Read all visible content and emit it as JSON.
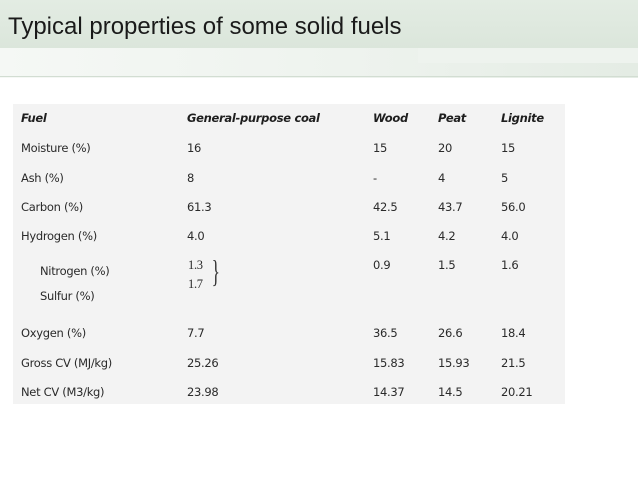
{
  "slide": {
    "title": "Typical properties of some solid fuels"
  },
  "table": {
    "headers": [
      "Fuel",
      "General-purpose coal",
      "Wood",
      "Peat",
      "Lignite"
    ],
    "rows": [
      {
        "label": "Moisture (%)",
        "coal": "16",
        "wood": "15",
        "peat": "20",
        "lignite": "15"
      },
      {
        "label": "Ash (%)",
        "coal": "8",
        "wood": "-",
        "peat": "4",
        "lignite": "5"
      },
      {
        "label": "Carbon (%)",
        "coal": "61.3",
        "wood": "42.5",
        "peat": "43.7",
        "lignite": "56.0"
      },
      {
        "label": "Hydrogen (%)",
        "coal": "4.0",
        "wood": "5.1",
        "peat": "4.2",
        "lignite": "4.0"
      },
      {
        "label": "Nitrogen (%)",
        "coal": "1.3",
        "wood": "0.9",
        "peat": "1.5",
        "lignite": "1.6"
      },
      {
        "label": "Sulfur (%)",
        "coal": "1.7",
        "wood": "",
        "peat": "",
        "lignite": ""
      },
      {
        "label": "Oxygen (%)",
        "coal": "7.7",
        "wood": "36.5",
        "peat": "26.6",
        "lignite": "18.4"
      },
      {
        "label": "Gross CV (MJ/kg)",
        "coal": "25.26",
        "wood": "15.83",
        "peat": "15.93",
        "lignite": "21.5"
      },
      {
        "label": "Net CV (M3/kg)",
        "coal": "23.98",
        "wood": "14.37",
        "peat": "14.5",
        "lignite": "20.21"
      }
    ]
  }
}
